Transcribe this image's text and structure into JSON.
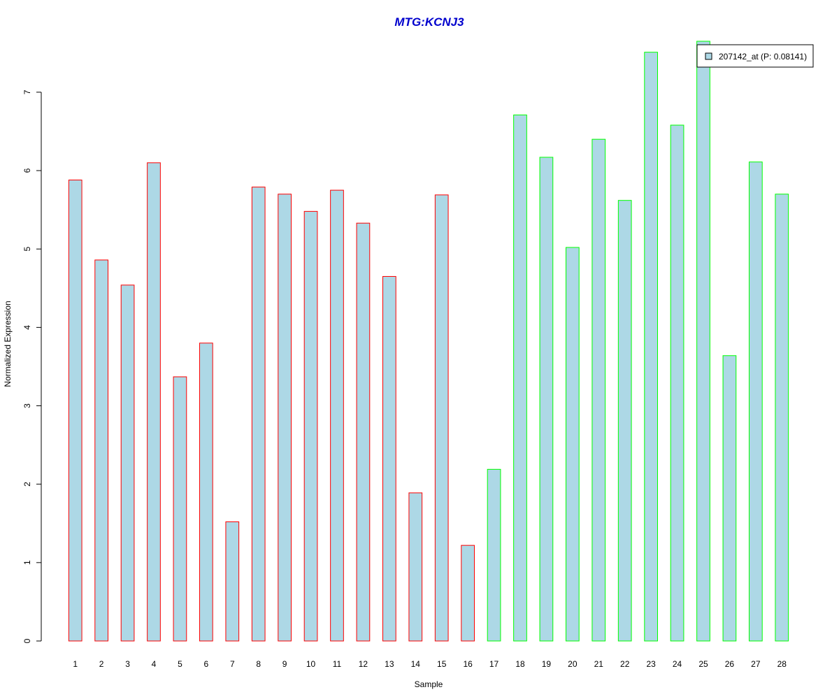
{
  "chart_data": {
    "type": "bar",
    "title": "MTG:KCNJ3",
    "xlabel": "Sample",
    "ylabel": "Normalized Expression",
    "categories": [
      "1",
      "2",
      "3",
      "4",
      "5",
      "6",
      "7",
      "8",
      "9",
      "10",
      "11",
      "12",
      "13",
      "14",
      "15",
      "16",
      "17",
      "18",
      "19",
      "20",
      "21",
      "22",
      "23",
      "24",
      "25",
      "26",
      "27",
      "28"
    ],
    "values": [
      5.88,
      4.86,
      4.54,
      6.1,
      3.37,
      3.8,
      1.52,
      5.79,
      5.7,
      5.48,
      5.75,
      5.33,
      4.65,
      1.89,
      5.69,
      1.22,
      2.19,
      6.71,
      6.17,
      5.02,
      6.4,
      5.62,
      7.51,
      6.58,
      7.65,
      3.64,
      6.11,
      5.7
    ],
    "groups": [
      "red",
      "red",
      "red",
      "red",
      "red",
      "red",
      "red",
      "red",
      "red",
      "red",
      "red",
      "red",
      "red",
      "red",
      "red",
      "red",
      "green",
      "green",
      "green",
      "green",
      "green",
      "green",
      "green",
      "green",
      "green",
      "green",
      "green",
      "green"
    ],
    "ylim": [
      0,
      7.65
    ],
    "yticks": [
      0,
      1,
      2,
      3,
      4,
      5,
      6,
      7
    ],
    "grid": false,
    "legend": {
      "position": "top-right",
      "entries": [
        {
          "label": "207142_at (P: 0.08141)",
          "fill": "#add8e6"
        }
      ]
    },
    "colors": {
      "bar_fill": "#add8e6",
      "group_red": "#ff0000",
      "group_green": "#00ff00",
      "title": "#0000cd"
    }
  }
}
